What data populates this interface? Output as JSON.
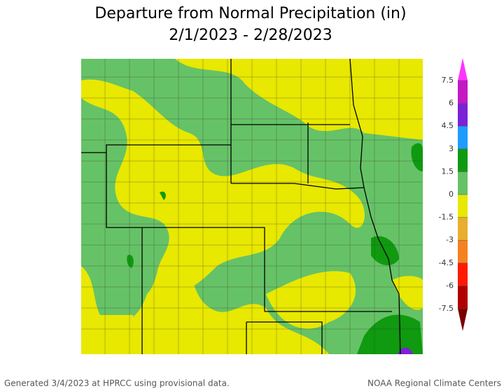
{
  "header": {
    "title": "Departure from Normal Precipitation (in)",
    "subtitle": "2/1/2023 - 2/28/2023"
  },
  "colorbar": {
    "ticks": [
      7.5,
      6,
      4.5,
      3,
      1.5,
      0,
      -1.5,
      -3,
      -4.5,
      -6,
      -7.5
    ],
    "colors": [
      "#7a0000",
      "#b00000",
      "#ff1a00",
      "#f58220",
      "#e8ae2e",
      "#e8e800",
      "#66c266",
      "#0f9a0f",
      "#1e9bff",
      "#7b22d6",
      "#c418c4",
      "#ff33ff"
    ]
  },
  "footer": {
    "left": "Generated 3/4/2023 at HPRCC using provisional data.",
    "right": "NOAA Regional Climate Centers"
  }
}
